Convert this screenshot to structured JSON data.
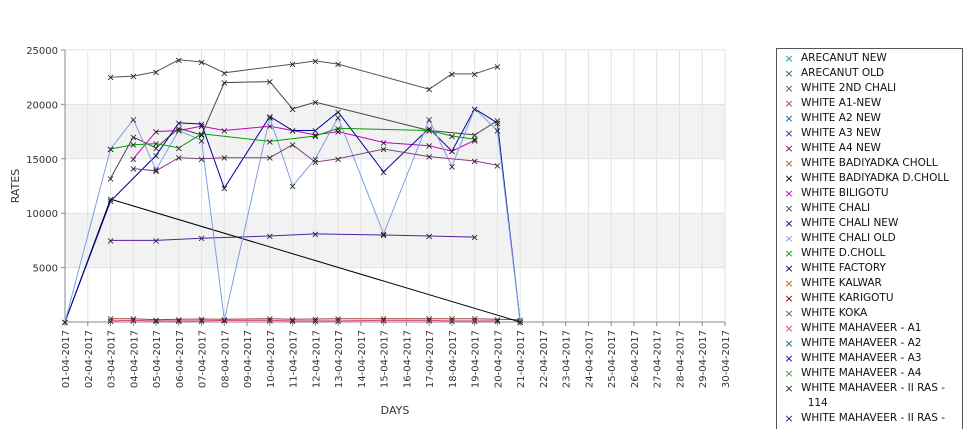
{
  "chart_data": {
    "type": "line",
    "xlabel": "DAYS",
    "ylabel": "RATES",
    "ylim": [
      0,
      25000
    ],
    "yticks": [
      5000,
      10000,
      15000,
      20000,
      25000
    ],
    "grid": true,
    "legend_position": "right",
    "x": [
      "01-04-2017",
      "02-04-2017",
      "03-04-2017",
      "04-04-2017",
      "05-04-2017",
      "06-04-2017",
      "07-04-2017",
      "08-04-2017",
      "09-04-2017",
      "10-04-2017",
      "11-04-2017",
      "12-04-2017",
      "13-04-2017",
      "14-04-2017",
      "15-04-2017",
      "16-04-2017",
      "17-04-2017",
      "18-04-2017",
      "19-04-2017",
      "20-04-2017",
      "21-04-2017",
      "22-04-2017",
      "23-04-2017",
      "24-04-2017",
      "25-04-2017",
      "26-04-2017",
      "27-04-2017",
      "28-04-2017",
      "29-04-2017",
      "30-04-2017"
    ],
    "series": [
      {
        "name": "ARECANUT NEW",
        "color": "#00a0a0",
        "values": [
          null,
          null,
          null,
          null,
          null,
          null,
          null,
          null,
          null,
          null,
          null,
          null,
          null,
          null,
          null,
          null,
          null,
          null,
          null,
          null,
          null,
          null,
          null,
          null,
          null,
          null,
          null,
          null,
          null,
          null
        ]
      },
      {
        "name": "ARECANUT OLD",
        "color": "#1f5f7f",
        "values": [
          null,
          null,
          null,
          null,
          null,
          null,
          null,
          null,
          null,
          null,
          null,
          null,
          null,
          null,
          null,
          null,
          null,
          null,
          null,
          null,
          null,
          null,
          null,
          null,
          null,
          null,
          null,
          null,
          null,
          null
        ]
      },
      {
        "name": "WHITE 2ND CHALI",
        "color": "#555555",
        "values": [
          null,
          null,
          22500,
          22600,
          23000,
          24100,
          23900,
          22900,
          null,
          null,
          23700,
          24000,
          23700,
          null,
          null,
          null,
          21400,
          22800,
          22800,
          23500,
          null,
          null,
          null,
          null,
          null,
          null,
          null,
          null,
          null,
          null
        ]
      },
      {
        "name": "WHITE A1-NEW",
        "color": "#a04040",
        "values": [
          null,
          null,
          300,
          300,
          200,
          250,
          280,
          250,
          null,
          300,
          250,
          280,
          300,
          null,
          300,
          null,
          300,
          300,
          300,
          250,
          200,
          null,
          null,
          null,
          null,
          null,
          null,
          null,
          null,
          null
        ]
      },
      {
        "name": "WHITE A2 NEW",
        "color": "#1060a0",
        "values": [
          null,
          null,
          null,
          null,
          null,
          null,
          null,
          null,
          null,
          null,
          null,
          null,
          null,
          null,
          null,
          null,
          null,
          null,
          null,
          null,
          null,
          null,
          null,
          null,
          null,
          null,
          null,
          null,
          null,
          null
        ]
      },
      {
        "name": "WHITE A3 NEW",
        "color": "#5020a0",
        "values": [
          null,
          null,
          7500,
          null,
          7500,
          null,
          7700,
          null,
          null,
          7900,
          null,
          8100,
          null,
          null,
          8000,
          null,
          7900,
          null,
          7800,
          null,
          null,
          null,
          null,
          null,
          null,
          null,
          null,
          null,
          null,
          null
        ]
      },
      {
        "name": "WHITE A4 NEW",
        "color": "#800060",
        "values": [
          null,
          null,
          null,
          null,
          null,
          null,
          null,
          null,
          null,
          null,
          null,
          null,
          null,
          null,
          null,
          null,
          null,
          null,
          null,
          null,
          null,
          null,
          null,
          null,
          null,
          null,
          null,
          null,
          null,
          null
        ]
      },
      {
        "name": "WHITE BADIYADKA CHOLL",
        "color": "#a06020",
        "values": [
          null,
          null,
          null,
          null,
          null,
          null,
          null,
          null,
          null,
          null,
          null,
          null,
          null,
          null,
          null,
          null,
          null,
          null,
          null,
          null,
          null,
          null,
          null,
          null,
          null,
          null,
          null,
          null,
          null,
          null
        ]
      },
      {
        "name": "WHITE BADIYADKA D.CHOLL",
        "color": "#000000",
        "values": [
          0,
          null,
          11300,
          null,
          null,
          null,
          null,
          null,
          null,
          null,
          null,
          null,
          null,
          null,
          null,
          null,
          null,
          null,
          null,
          null,
          0,
          null,
          null,
          null,
          null,
          null,
          null,
          null,
          null,
          null
        ]
      },
      {
        "name": "WHITE BILIGOTU",
        "color": "#c000c0",
        "values": [
          null,
          null,
          null,
          15000,
          17500,
          17600,
          18000,
          17600,
          null,
          18000,
          17600,
          17200,
          17500,
          null,
          16500,
          null,
          16200,
          15700,
          16700,
          null,
          null,
          null,
          null,
          null,
          null,
          null,
          null,
          null,
          null,
          null
        ]
      },
      {
        "name": "WHITE CHALI",
        "color": "#444444",
        "values": [
          null,
          null,
          13200,
          17000,
          16000,
          17800,
          17200,
          22000,
          null,
          22100,
          19600,
          20200,
          null,
          null,
          null,
          null,
          17600,
          null,
          17200,
          18500,
          null,
          null,
          null,
          null,
          null,
          null,
          null,
          null,
          null,
          null
        ]
      },
      {
        "name": "WHITE CHALI NEW",
        "color": "#0000a0",
        "values": [
          0,
          null,
          11100,
          null,
          15300,
          18300,
          18200,
          12300,
          null,
          18900,
          17600,
          17600,
          19300,
          null,
          13800,
          null,
          17800,
          15700,
          19600,
          18300,
          0,
          null,
          null,
          null,
          null,
          null,
          null,
          null,
          null,
          null
        ]
      },
      {
        "name": "WHITE CHALI OLD",
        "color": "#7f9fdf",
        "values": [
          0,
          null,
          15900,
          18600,
          14000,
          17600,
          16700,
          200,
          null,
          18800,
          12500,
          15000,
          18800,
          null,
          8100,
          null,
          18600,
          14300,
          19600,
          17600,
          0,
          null,
          null,
          null,
          null,
          null,
          null,
          null,
          null,
          null
        ]
      },
      {
        "name": "WHITE D.CHOLL",
        "color": "#00a000",
        "values": [
          null,
          null,
          15900,
          16300,
          16400,
          16000,
          17300,
          null,
          null,
          16600,
          null,
          17100,
          17800,
          null,
          null,
          null,
          17600,
          17100,
          16800,
          null,
          null,
          null,
          null,
          null,
          null,
          null,
          null,
          null,
          null,
          null
        ]
      },
      {
        "name": "WHITE FACTORY",
        "color": "#000060",
        "values": [
          null,
          null,
          null,
          null,
          null,
          null,
          null,
          null,
          null,
          null,
          null,
          null,
          null,
          null,
          null,
          null,
          null,
          null,
          null,
          null,
          null,
          null,
          null,
          null,
          null,
          null,
          null,
          null,
          null,
          null
        ]
      },
      {
        "name": "WHITE KALWAR",
        "color": "#c06000",
        "values": [
          null,
          null,
          null,
          null,
          null,
          null,
          null,
          null,
          null,
          null,
          null,
          null,
          null,
          null,
          null,
          null,
          null,
          null,
          null,
          null,
          null,
          null,
          null,
          null,
          null,
          null,
          null,
          null,
          null,
          null
        ]
      },
      {
        "name": "WHITE KARIGOTU",
        "color": "#a00000",
        "values": [
          null,
          null,
          null,
          null,
          null,
          null,
          null,
          null,
          null,
          null,
          null,
          null,
          null,
          null,
          null,
          null,
          null,
          null,
          null,
          null,
          null,
          null,
          null,
          null,
          null,
          null,
          null,
          null,
          null,
          null
        ]
      },
      {
        "name": "WHITE KOKA",
        "color": "#804080",
        "values": [
          null,
          null,
          null,
          14100,
          13900,
          15100,
          15000,
          15100,
          null,
          15100,
          16300,
          14700,
          15000,
          null,
          15900,
          null,
          15200,
          null,
          14800,
          14400,
          null,
          null,
          null,
          null,
          null,
          null,
          null,
          null,
          null,
          null
        ]
      },
      {
        "name": "WHITE MAHAVEER - A1",
        "color": "#e04080",
        "values": [
          null,
          null,
          100,
          150,
          100,
          100,
          100,
          150,
          null,
          150,
          100,
          100,
          100,
          null,
          150,
          null,
          150,
          100,
          100,
          100,
          null,
          null,
          null,
          null,
          null,
          null,
          null,
          null,
          null,
          null
        ]
      },
      {
        "name": "WHITE MAHAVEER - A2",
        "color": "#206080",
        "values": [
          null,
          null,
          null,
          null,
          null,
          null,
          null,
          null,
          null,
          null,
          null,
          null,
          null,
          null,
          null,
          null,
          null,
          null,
          null,
          null,
          null,
          null,
          null,
          null,
          null,
          null,
          null,
          null,
          null,
          null
        ]
      },
      {
        "name": "WHITE MAHAVEER - A3",
        "color": "#0000c0",
        "values": [
          null,
          null,
          null,
          null,
          null,
          null,
          null,
          null,
          null,
          null,
          null,
          null,
          null,
          null,
          null,
          null,
          null,
          null,
          null,
          null,
          null,
          null,
          null,
          null,
          null,
          null,
          null,
          null,
          null,
          null
        ]
      },
      {
        "name": "WHITE MAHAVEER - A4",
        "color": "#40a040",
        "values": [
          null,
          null,
          null,
          null,
          null,
          null,
          null,
          null,
          null,
          null,
          null,
          null,
          null,
          null,
          null,
          null,
          null,
          null,
          null,
          null,
          null,
          null,
          null,
          null,
          null,
          null,
          null,
          null,
          null,
          null
        ]
      },
      {
        "name": "WHITE MAHAVEER - II RAS -\n  114",
        "color": "#203040",
        "values": [
          null,
          null,
          null,
          null,
          null,
          null,
          null,
          null,
          null,
          null,
          null,
          null,
          null,
          null,
          null,
          null,
          null,
          null,
          null,
          null,
          null,
          null,
          null,
          null,
          null,
          null,
          null,
          null,
          null,
          null
        ]
      },
      {
        "name": "WHITE MAHAVEER - II RAS -",
        "color": "#2020a0",
        "values": [
          null,
          null,
          null,
          null,
          null,
          null,
          null,
          null,
          null,
          null,
          null,
          null,
          null,
          null,
          null,
          null,
          null,
          null,
          null,
          null,
          null,
          null,
          null,
          null,
          null,
          null,
          null,
          null,
          null,
          null
        ]
      }
    ]
  }
}
